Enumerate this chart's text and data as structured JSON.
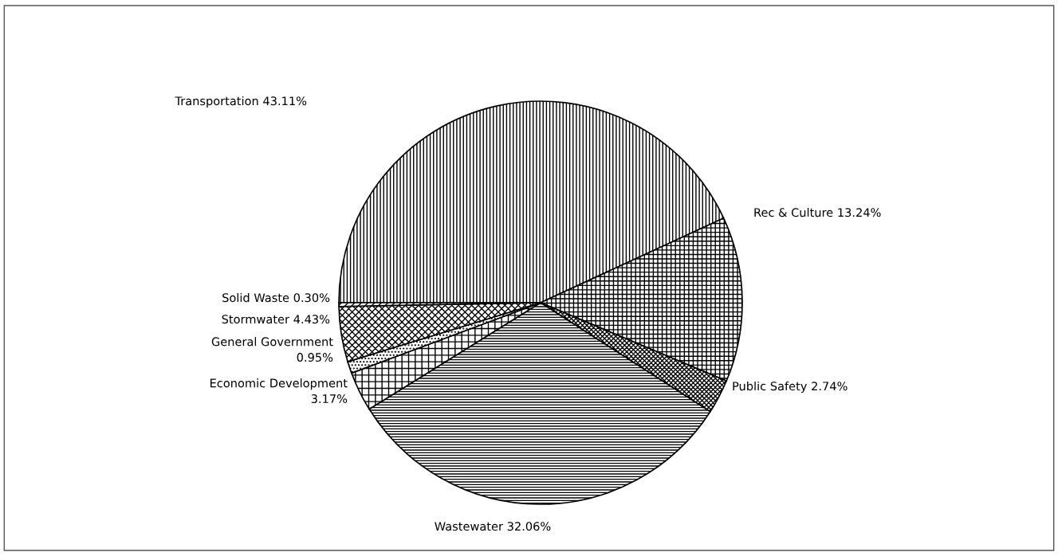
{
  "chart_data": {
    "type": "pie",
    "categories": [
      "Transportation",
      "Rec & Culture",
      "Public Safety",
      "Wastewater",
      "Economic Development",
      "General Government",
      "Stormwater",
      "Solid Waste"
    ],
    "values": [
      43.11,
      13.24,
      2.74,
      32.06,
      3.17,
      0.95,
      4.43,
      0.3
    ],
    "colors": [
      "#000000",
      "#000000",
      "#000000",
      "#000000",
      "#000000",
      "#000000",
      "#000000",
      "#000000"
    ],
    "value_labels": [
      "43.11%",
      "13.24%",
      "2.74%",
      "32.06%",
      "3.17%",
      "0.95%",
      "4.43%",
      "0.30%"
    ]
  }
}
